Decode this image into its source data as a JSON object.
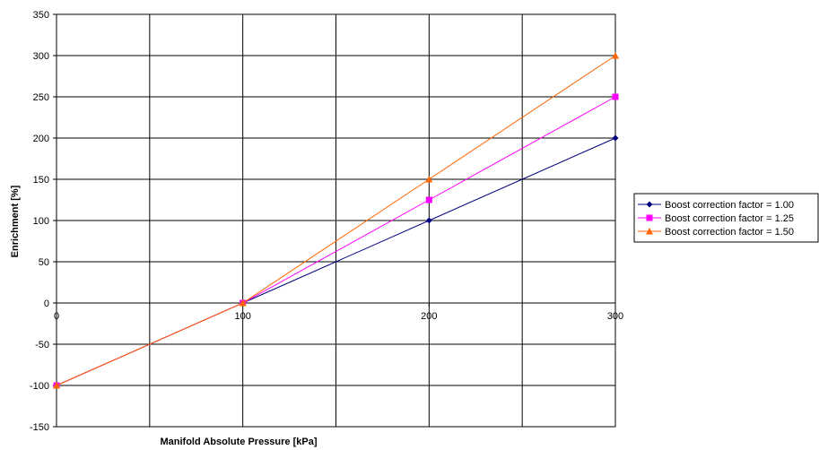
{
  "chart_data": {
    "type": "line",
    "title": "",
    "xlabel": "Manifold Absolute Pressure [kPa]",
    "ylabel": "Enrichment [%]",
    "xlim": [
      0,
      300
    ],
    "ylim": [
      -150,
      350
    ],
    "xticks": [
      0,
      100,
      200,
      300
    ],
    "yticks": [
      -150,
      -100,
      -50,
      0,
      50,
      100,
      150,
      200,
      250,
      300,
      350
    ],
    "grid": true,
    "legend_position": "right",
    "x": [
      0,
      100,
      200,
      300
    ],
    "series": [
      {
        "name": "Boost correction factor = 1.00",
        "values": [
          -100,
          0,
          100,
          200
        ],
        "color": "#000080",
        "marker": "diamond"
      },
      {
        "name": "Boost correction factor = 1.25",
        "values": [
          -100,
          0,
          125,
          250
        ],
        "color": "#ff00ff",
        "marker": "square"
      },
      {
        "name": "Boost correction factor = 1.50",
        "values": [
          -100,
          0,
          150,
          300
        ],
        "color": "#ff6600",
        "marker": "triangle"
      }
    ]
  }
}
